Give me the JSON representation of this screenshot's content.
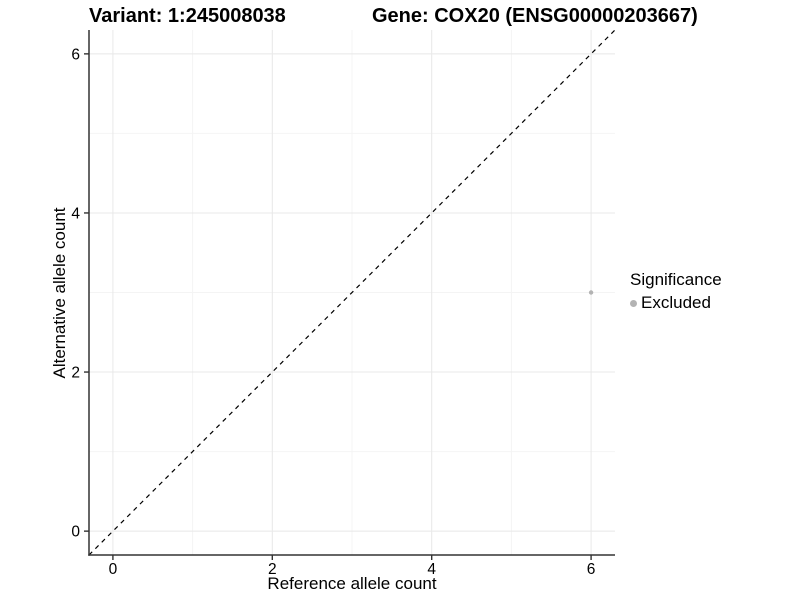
{
  "titles": {
    "variant": "Variant: 1:245008038",
    "gene": "Gene: COX20 (ENSG00000203667)"
  },
  "axes": {
    "x": {
      "label": "Reference allele count",
      "tick_labels": [
        "0",
        "2",
        "4",
        "6"
      ],
      "tick_values": [
        0,
        2,
        4,
        6
      ],
      "minor_values": [
        1,
        3,
        5
      ]
    },
    "y": {
      "label": "Alternative allele count",
      "tick_labels": [
        "0",
        "2",
        "4",
        "6"
      ],
      "tick_values": [
        0,
        2,
        4,
        6
      ],
      "minor_values": [
        1,
        3,
        5
      ]
    }
  },
  "legend": {
    "title": "Significance",
    "items": [
      {
        "label": "Excluded",
        "color": "#b3b3b3",
        "marker": "circle"
      }
    ]
  },
  "style": {
    "background": "#ffffff",
    "grid_major": "#e8e8e8",
    "grid_minor": "#f4f4f4",
    "axis_line": "#333333",
    "tick_mark": "#333333",
    "text": "#000000",
    "reference_line": "#000000"
  },
  "chart_data": {
    "type": "scatter",
    "title": "Variant: 1:245008038 | Gene: COX20 (ENSG00000203667)",
    "xlabel": "Reference allele count",
    "ylabel": "Alternative allele count",
    "xlim": [
      -0.3,
      6.3
    ],
    "ylim": [
      -0.3,
      6.3
    ],
    "x_ticks": [
      0,
      2,
      4,
      6
    ],
    "y_ticks": [
      0,
      2,
      4,
      6
    ],
    "grid": "major gridlines at 0,2,4,6 and minor at 1,3,5 in light gray on white",
    "legend_position": "right of panel, vertically centered",
    "series": [
      {
        "name": "Excluded",
        "color": "#b3b3b3",
        "marker_radius_px": 2.2,
        "points": [
          {
            "x": 6,
            "y": 3
          }
        ]
      }
    ],
    "reference_line": {
      "style": "dashed",
      "slope": 1,
      "intercept": 0,
      "color": "#000000",
      "from": [
        -0.3,
        -0.3
      ],
      "to": [
        6.3,
        6.3
      ]
    }
  }
}
